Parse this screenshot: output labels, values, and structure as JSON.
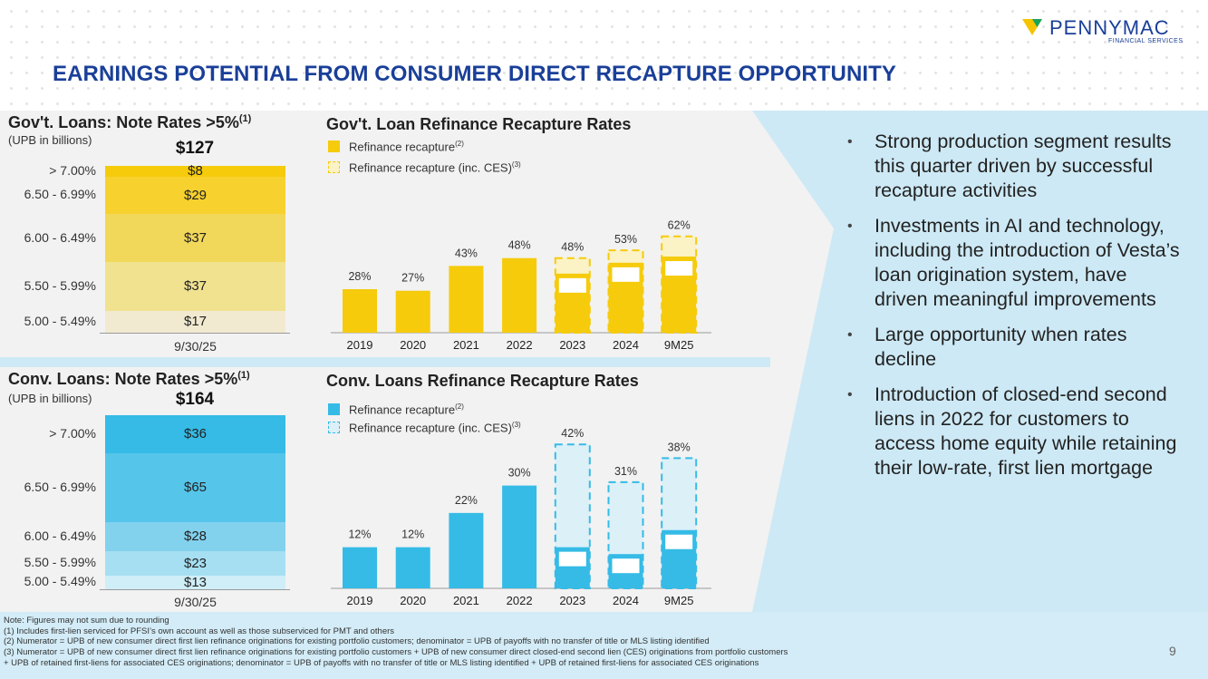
{
  "header": {
    "title": "EARNINGS POTENTIAL FROM CONSUMER DIRECT RECAPTURE OPPORTUNITY",
    "logo": {
      "name": "PENNYMAC",
      "sub": "FINANCIAL SERVICES"
    },
    "colors": {
      "brand_blue": "#1a3f99",
      "logo_yellow": "#f5c400",
      "logo_green": "#1aa35c"
    }
  },
  "gov": {
    "heading": "Gov't. Loans: Note Rates >5%",
    "heading_sup": "(1)",
    "sub": "(UPB in billions)",
    "total": "$127",
    "date": "9/30/25",
    "ranges": [
      "> 7.00%",
      "6.50 - 6.99%",
      "6.00 - 6.49%",
      "5.50 - 5.99%",
      "5.00 - 5.49%"
    ],
    "values": [
      8,
      29,
      37,
      37,
      17
    ],
    "labels": [
      "$8",
      "$29",
      "$37",
      "$37",
      "$17"
    ],
    "colors": [
      "#f5cb0c",
      "#f7d22e",
      "#f2d85a",
      "#f1e290",
      "#f2ead0"
    ]
  },
  "conv": {
    "heading": "Conv. Loans: Note Rates >5%",
    "heading_sup": "(1)",
    "sub": "(UPB in billions)",
    "total": "$164",
    "date": "9/30/25",
    "ranges": [
      "> 7.00%",
      "6.50 - 6.99%",
      "6.00 - 6.49%",
      "5.50 - 5.99%",
      "5.00 - 5.49%"
    ],
    "values": [
      36,
      65,
      28,
      23,
      13
    ],
    "labels": [
      "$36",
      "$65",
      "$28",
      "$23",
      "$13"
    ],
    "colors": [
      "#35bbe6",
      "#56c5ea",
      "#82d2ee",
      "#a6dff2",
      "#cfeef8"
    ]
  },
  "gov_chart_title": "Gov't. Loan Refinance Recapture Rates",
  "conv_chart_title": "Conv. Loans Refinance Recapture Rates",
  "legends": {
    "gov": [
      {
        "label": "Refinance recapture",
        "sup": "(2)"
      },
      {
        "label": "Refinance recapture (inc. CES)",
        "sup": "(3)"
      }
    ],
    "conv": [
      {
        "label": "Refinance recapture",
        "sup": "(2)"
      },
      {
        "label": "Refinance recapture (inc. CES)",
        "sup": "(3)"
      }
    ]
  },
  "chart_data": [
    {
      "type": "bar",
      "title": "Gov't. Loan Refinance Recapture Rates",
      "categories": [
        "2019",
        "2020",
        "2021",
        "2022",
        "2023",
        "2024",
        "9M25"
      ],
      "series": [
        {
          "name": "Refinance recapture(2)",
          "values": [
            28,
            27,
            43,
            48,
            38,
            45,
            49
          ],
          "labels": [
            "28%",
            "27%",
            "43%",
            "48%",
            "38%",
            "45%",
            "49%"
          ]
        },
        {
          "name": "Refinance recapture (inc. CES)(3)",
          "values": [
            null,
            null,
            null,
            null,
            48,
            53,
            62
          ],
          "labels": [
            "",
            "",
            "",
            "",
            "48%",
            "53%",
            "62%"
          ]
        }
      ],
      "ylim": [
        0,
        70
      ],
      "colors": {
        "solid": "#f5cb0c",
        "dashed_fill": "#fbf2c5",
        "dashed_stroke": "#f5cb0c"
      }
    },
    {
      "type": "bar",
      "title": "Conv. Loans Refinance Recapture Rates",
      "categories": [
        "2019",
        "2020",
        "2021",
        "2022",
        "2023",
        "2024",
        "9M25"
      ],
      "series": [
        {
          "name": "Refinance recapture(2)",
          "values": [
            12,
            12,
            22,
            30,
            12,
            10,
            17
          ],
          "labels": [
            "12%",
            "12%",
            "22%",
            "30%",
            "12%",
            "10%",
            "17%"
          ]
        },
        {
          "name": "Refinance recapture (inc. CES)(3)",
          "values": [
            null,
            null,
            null,
            null,
            42,
            31,
            38
          ],
          "labels": [
            "",
            "",
            "",
            "",
            "42%",
            "31%",
            "38%"
          ]
        }
      ],
      "ylim": [
        0,
        50
      ],
      "colors": {
        "solid": "#35bbe6",
        "dashed_fill": "#dcf0f8",
        "dashed_stroke": "#35bbe6"
      }
    }
  ],
  "bullets": [
    "Strong production segment results this quarter driven by successful recapture activities",
    "Investments in AI and technology, including the introduction of Vesta’s loan origination system, have driven meaningful improvements",
    "Large opportunity when rates decline",
    "Introduction of closed-end second liens in 2022 for customers to access home equity while retaining their low-rate, first lien mortgage"
  ],
  "notes": [
    "Note: Figures may not sum due to rounding",
    "(1) Includes first-lien serviced for PFSI’s own account as well as those subserviced for PMT and others",
    "(2) Numerator = UPB of new consumer direct first lien refinance originations for existing portfolio customers; denominator = UPB of payoffs with no transfer of title or MLS listing identified",
    "(3) Numerator = UPB of new consumer direct first lien refinance originations for existing portfolio customers  + UPB of new consumer direct closed-end second lien (CES) originations from portfolio customers",
    "+ UPB of retained first-liens for associated CES originations; denominator = UPB of payoffs with no transfer of title or MLS listing identified + UPB of retained first-liens for associated CES originations"
  ],
  "page_number": "9"
}
